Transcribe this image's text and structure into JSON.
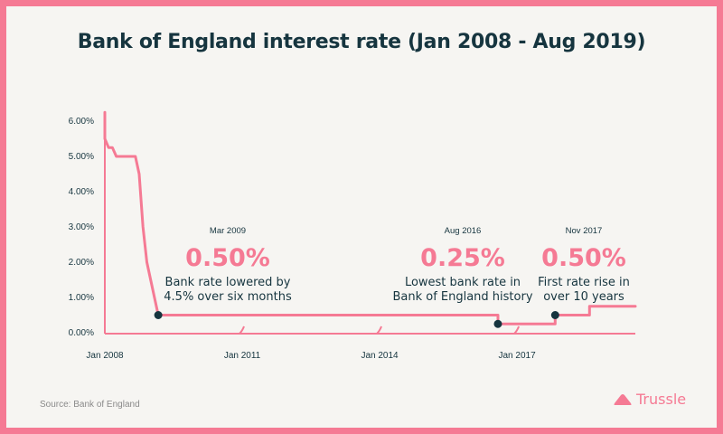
{
  "chart_data": {
    "type": "line",
    "title": "Bank of England interest rate (Jan 2008 - Aug 2019)",
    "xlabel": "",
    "ylabel": "",
    "x_ticks": [
      "Jan 2008",
      "Jan 2011",
      "Jan 2014",
      "Jan 2017"
    ],
    "y_ticks": [
      "0.00%",
      "1.00%",
      "2.00%",
      "3.00%",
      "4.00%",
      "5.00%",
      "6.00%"
    ],
    "ylim": [
      0,
      6.25
    ],
    "xlim": [
      "2008-01",
      "2019-08"
    ],
    "grid": false,
    "line_color": "#f57a94",
    "series": [
      {
        "name": "",
        "points": [
          {
            "x": "2008-01",
            "y": 6.25
          },
          {
            "x": "2008-01",
            "y": 5.5
          },
          {
            "x": "2008-02",
            "y": 5.25
          },
          {
            "x": "2008-03",
            "y": 5.25
          },
          {
            "x": "2008-04",
            "y": 5.0
          },
          {
            "x": "2008-09",
            "y": 5.0
          },
          {
            "x": "2008-10",
            "y": 4.5
          },
          {
            "x": "2008-11",
            "y": 3.0
          },
          {
            "x": "2008-12",
            "y": 2.0
          },
          {
            "x": "2009-01",
            "y": 1.5
          },
          {
            "x": "2009-02",
            "y": 1.0
          },
          {
            "x": "2009-03",
            "y": 0.5
          },
          {
            "x": "2016-08",
            "y": 0.5
          },
          {
            "x": "2016-08",
            "y": 0.25
          },
          {
            "x": "2017-11",
            "y": 0.25
          },
          {
            "x": "2017-11",
            "y": 0.5
          },
          {
            "x": "2018-08",
            "y": 0.5
          },
          {
            "x": "2018-08",
            "y": 0.75
          },
          {
            "x": "2019-08",
            "y": 0.75
          }
        ]
      }
    ],
    "annotations": [
      {
        "x": "2009-03",
        "y": 0.5,
        "date": "Mar 2009",
        "value": "0.50%",
        "text_lines": [
          "Bank rate lowered by",
          "4.5% over six months"
        ]
      },
      {
        "x": "2016-08",
        "y": 0.25,
        "date": "Aug 2016",
        "value": "0.25%",
        "text_lines": [
          "Lowest bank rate in",
          "Bank of England history"
        ]
      },
      {
        "x": "2017-11",
        "y": 0.5,
        "date": "Nov 2017",
        "value": "0.50%",
        "text_lines": [
          "First rate rise in",
          "over 10 years"
        ]
      }
    ],
    "source": "Source: Bank of England"
  },
  "brand": {
    "name": "Trussle",
    "color": "#f57a94"
  },
  "colors": {
    "title": "#16353f",
    "axis": "#f57a94",
    "marker": "#16353f",
    "value": "#f57a94"
  }
}
